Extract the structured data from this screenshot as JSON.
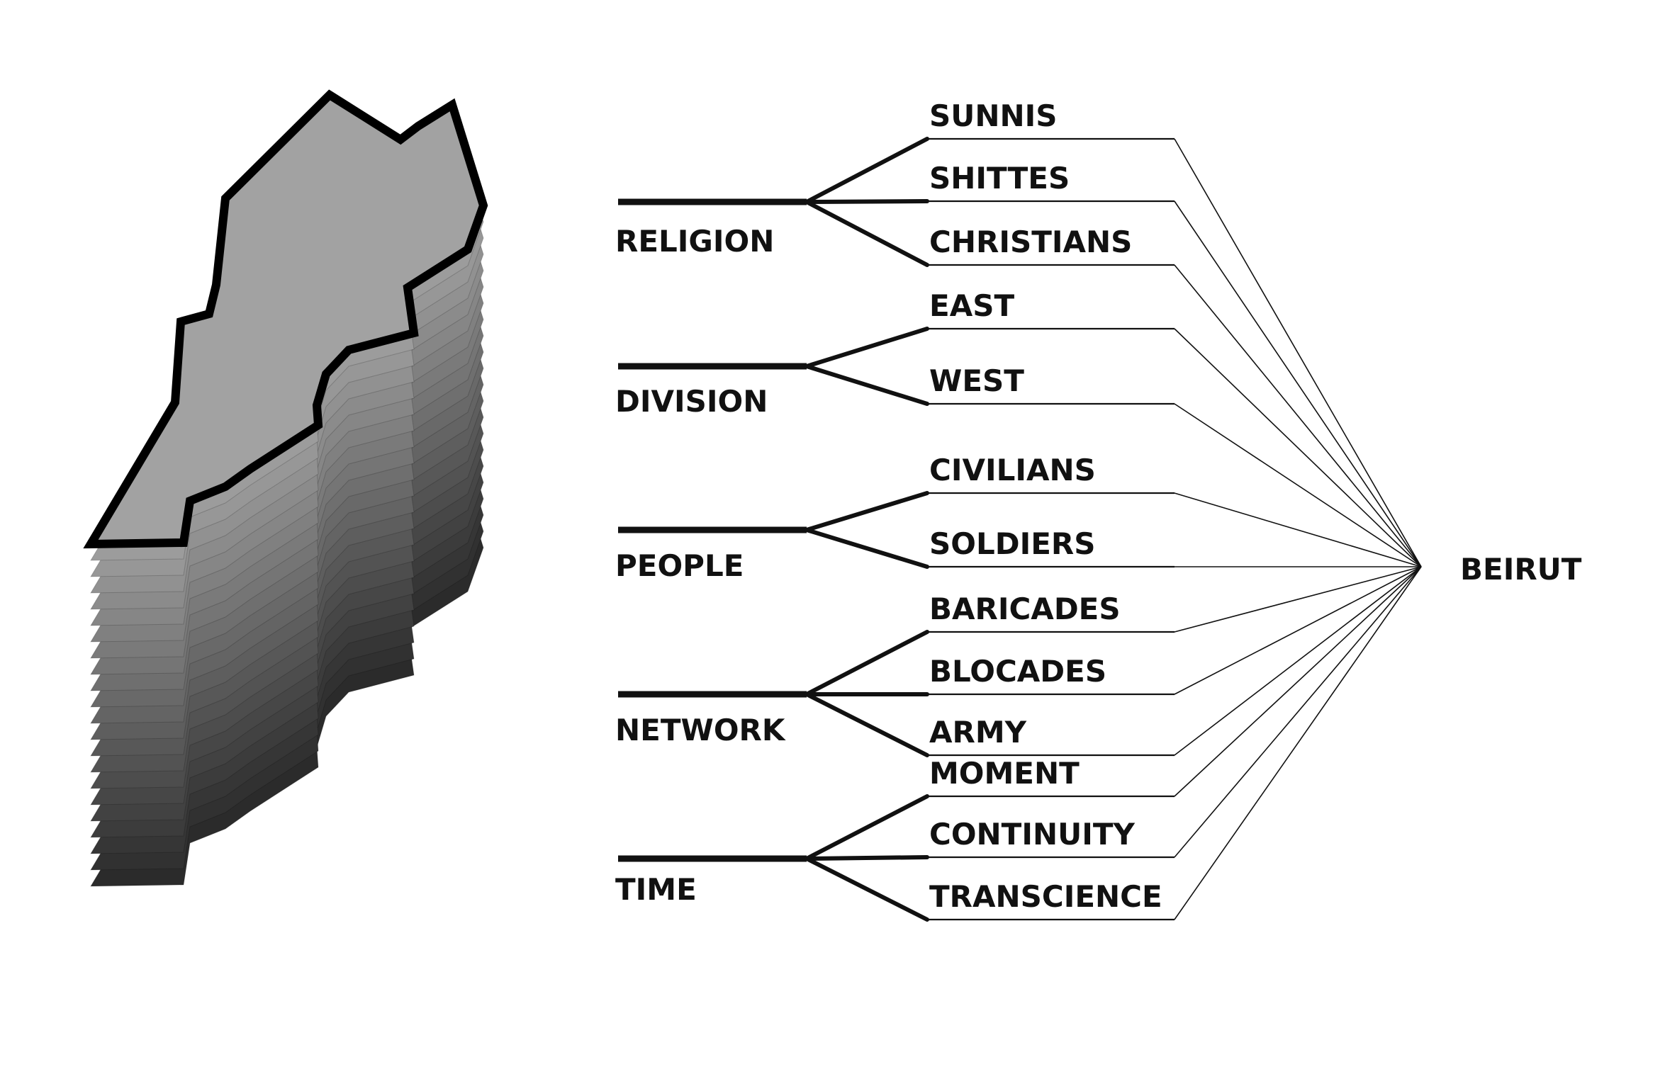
{
  "map": {
    "icon": "lebanon-map-layered-stack",
    "layer_count": 22,
    "outline_color": "#000000",
    "top_fill": "#a2a2a2",
    "bottom_fill": "#2b2b2b"
  },
  "categories": [
    {
      "label": "RELIGION",
      "items": [
        "SUNNIS",
        "SHITTES",
        "CHRISTIANS"
      ]
    },
    {
      "label": "DIVISION",
      "items": [
        "EAST",
        "WEST"
      ]
    },
    {
      "label": "PEOPLE",
      "items": [
        "CIVILIANS",
        "SOLDIERS"
      ]
    },
    {
      "label": "NETWORK",
      "items": [
        "BARICADES",
        "BLOCADES",
        "ARMY"
      ]
    },
    {
      "label": "TIME",
      "items": [
        "MOMENT",
        "CONTINUITY",
        "TRANSCIENCE"
      ]
    }
  ],
  "target": {
    "label": "BEIRUT"
  }
}
